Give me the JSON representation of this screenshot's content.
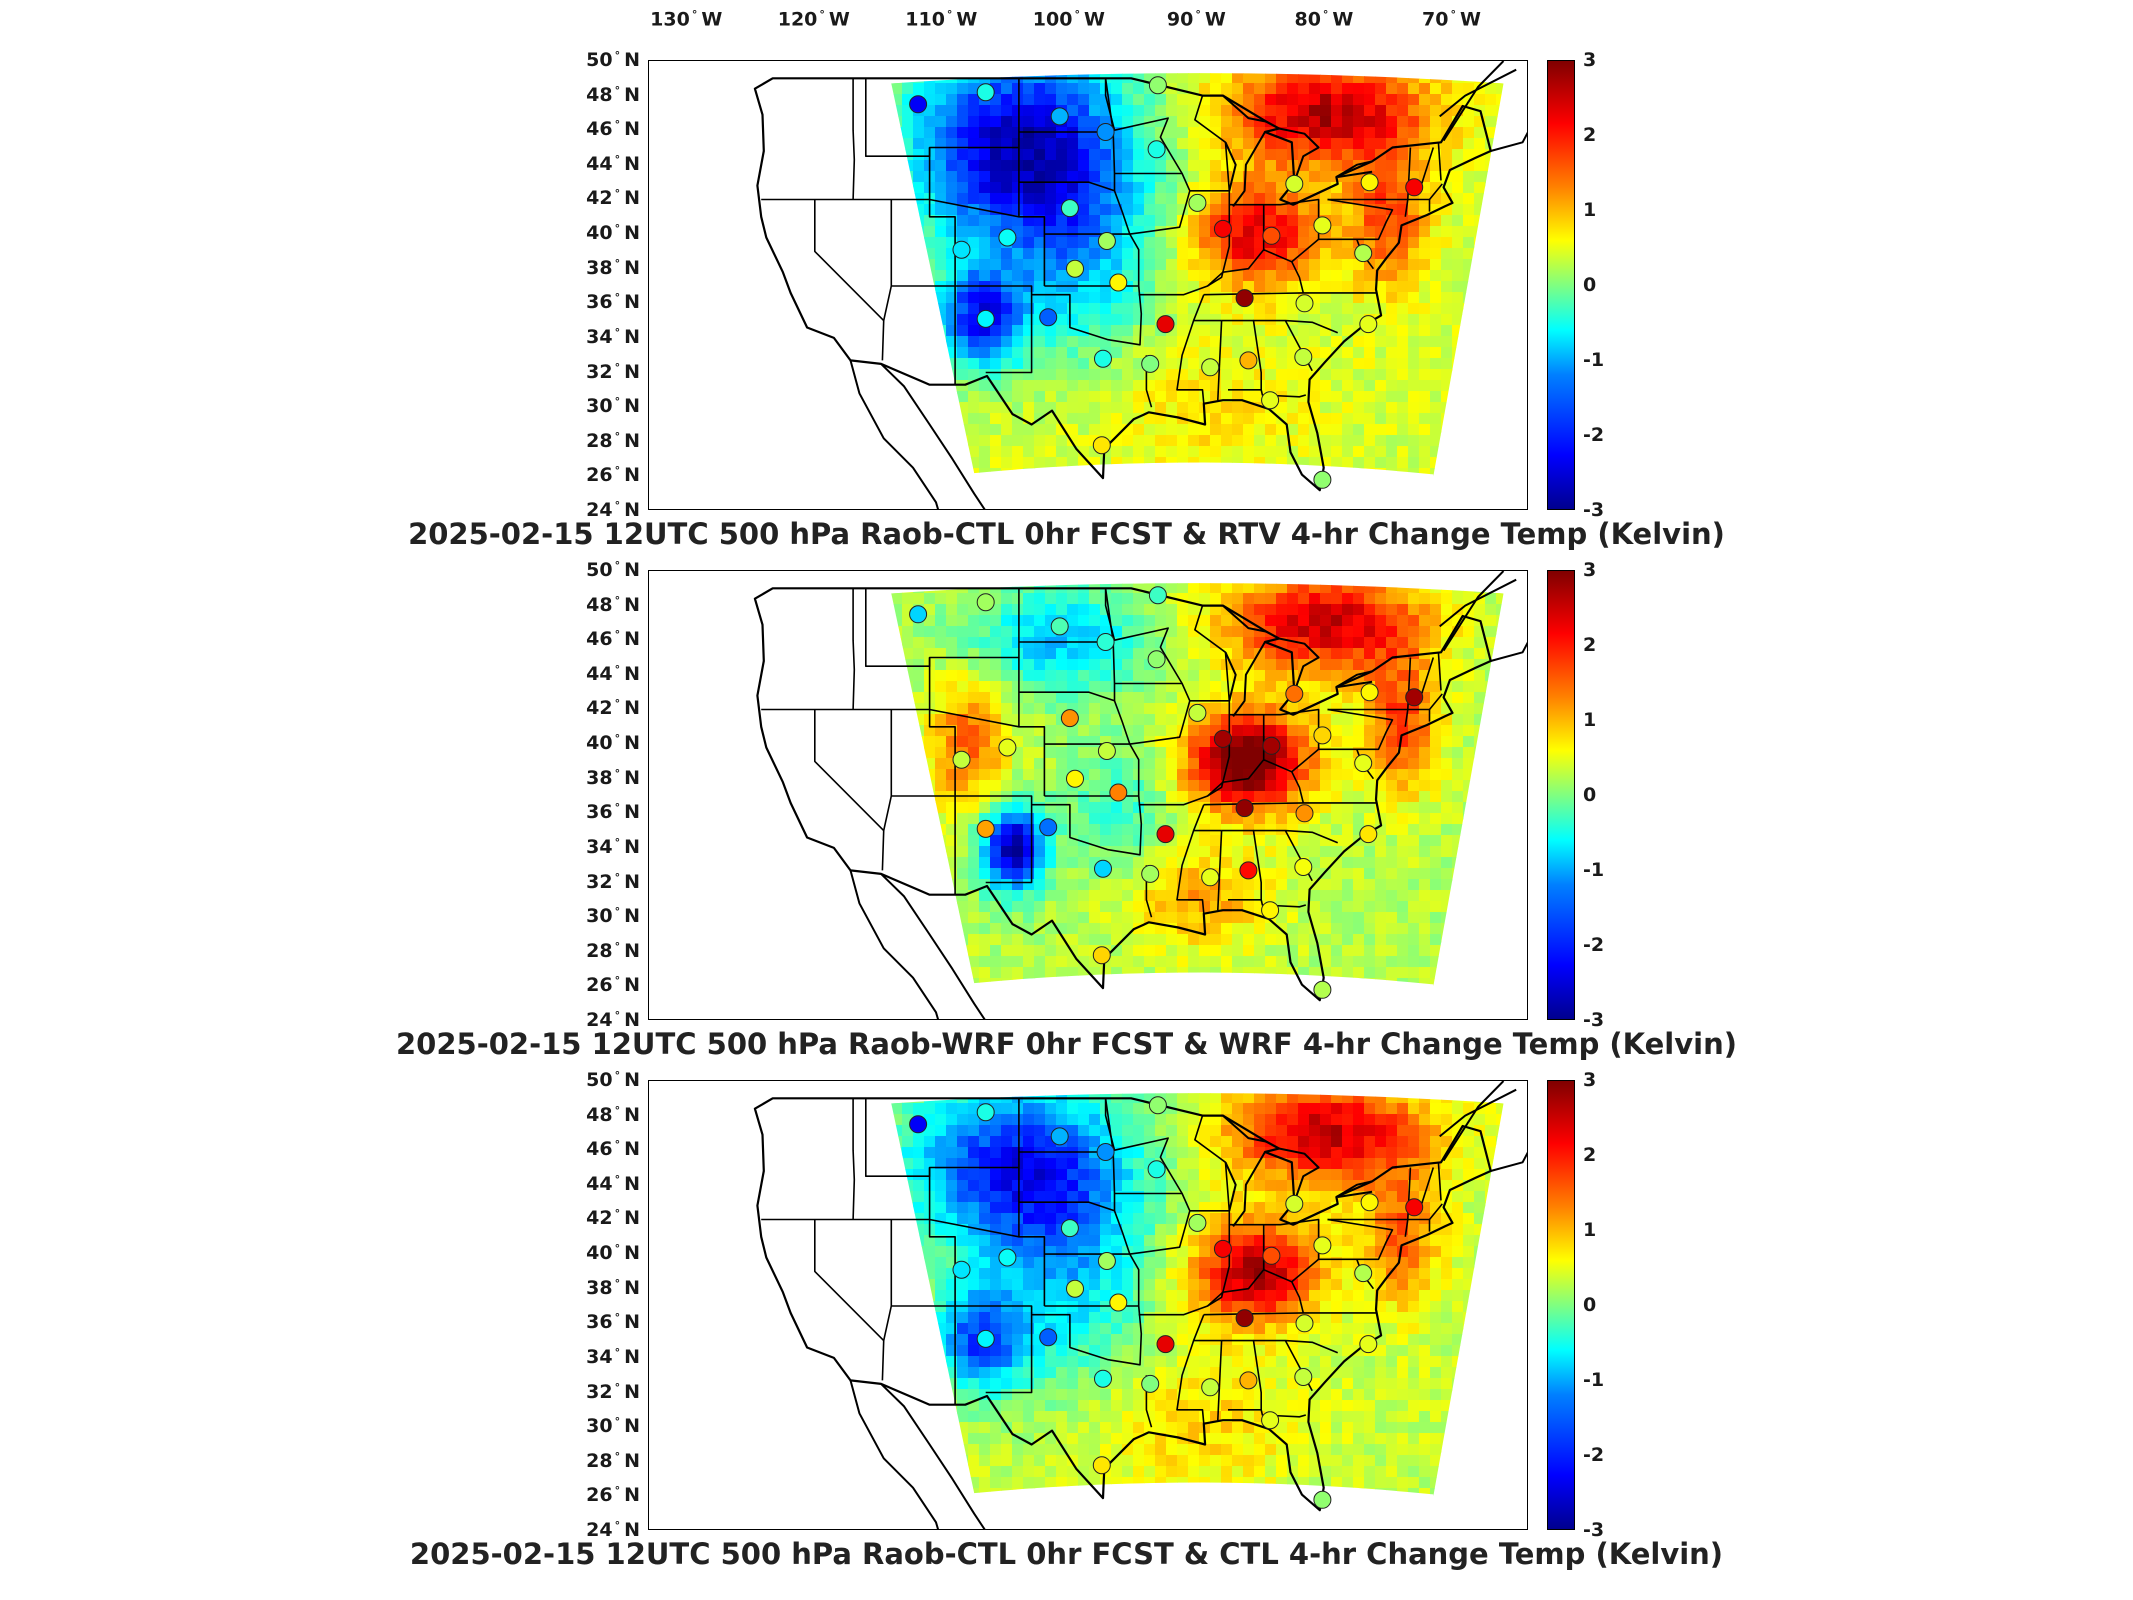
{
  "lon_ticks": [
    {
      "label": "130",
      "hemi": "W"
    },
    {
      "label": "120",
      "hemi": "W"
    },
    {
      "label": "110",
      "hemi": "W"
    },
    {
      "label": "100",
      "hemi": "W"
    },
    {
      "label": "90",
      "hemi": "W"
    },
    {
      "label": "80",
      "hemi": "W"
    },
    {
      "label": "70",
      "hemi": "W"
    }
  ],
  "lat_ticks": [
    {
      "label": "50",
      "hemi": "N"
    },
    {
      "label": "48",
      "hemi": "N"
    },
    {
      "label": "46",
      "hemi": "N"
    },
    {
      "label": "44",
      "hemi": "N"
    },
    {
      "label": "42",
      "hemi": "N"
    },
    {
      "label": "40",
      "hemi": "N"
    },
    {
      "label": "38",
      "hemi": "N"
    },
    {
      "label": "36",
      "hemi": "N"
    },
    {
      "label": "34",
      "hemi": "N"
    },
    {
      "label": "32",
      "hemi": "N"
    },
    {
      "label": "30",
      "hemi": "N"
    },
    {
      "label": "28",
      "hemi": "N"
    },
    {
      "label": "26",
      "hemi": "N"
    },
    {
      "label": "24",
      "hemi": "N"
    }
  ],
  "colorbar": {
    "min": -3,
    "max": 3,
    "ticks": [
      "3",
      "2",
      "1",
      "0",
      "-1",
      "-2",
      "-3"
    ],
    "colors": [
      "#00008f",
      "#0000ff",
      "#0080ff",
      "#00ffff",
      "#80ff80",
      "#ffff00",
      "#ff8000",
      "#ff0000",
      "#800000"
    ]
  },
  "panels": [
    {
      "title": "2025-02-15 12UTC 500 hPa Raob-CTL 0hr FCST & RTV 4-hr Change Temp (Kelvin)",
      "field": "rtv",
      "stations": [
        {
          "lon": -111.9,
          "lat": 47.5,
          "v": -2.3
        },
        {
          "lon": -106.6,
          "lat": 48.2,
          "v": -0.6
        },
        {
          "lon": -100.8,
          "lat": 46.8,
          "v": -1.2
        },
        {
          "lon": -97.2,
          "lat": 45.9,
          "v": -1.4
        },
        {
          "lon": -93.2,
          "lat": 44.9,
          "v": -0.6
        },
        {
          "lon": -93.1,
          "lat": 48.6,
          "v": 0.1
        },
        {
          "lon": -90.0,
          "lat": 41.8,
          "v": 0.2
        },
        {
          "lon": -88.0,
          "lat": 40.3,
          "v": 2.3
        },
        {
          "lon": -84.2,
          "lat": 39.9,
          "v": 1.8
        },
        {
          "lon": -82.4,
          "lat": 42.9,
          "v": 0.5
        },
        {
          "lon": -80.2,
          "lat": 40.5,
          "v": 0.6
        },
        {
          "lon": -76.5,
          "lat": 43.0,
          "v": 0.8
        },
        {
          "lon": -73.0,
          "lat": 42.7,
          "v": 2.3
        },
        {
          "lon": -100.0,
          "lat": 41.5,
          "v": -0.4
        },
        {
          "lon": -97.1,
          "lat": 39.6,
          "v": 0.2
        },
        {
          "lon": -104.9,
          "lat": 39.8,
          "v": -0.7
        },
        {
          "lon": -99.6,
          "lat": 38.0,
          "v": 0.4
        },
        {
          "lon": -96.2,
          "lat": 37.2,
          "v": 0.8
        },
        {
          "lon": -92.5,
          "lat": 34.8,
          "v": 2.4
        },
        {
          "lon": -86.3,
          "lat": 36.3,
          "v": 2.9
        },
        {
          "lon": -81.6,
          "lat": 36.0,
          "v": 0.5
        },
        {
          "lon": -77.0,
          "lat": 38.9,
          "v": 0.3
        },
        {
          "lon": -76.6,
          "lat": 34.8,
          "v": 0.6
        },
        {
          "lon": -106.6,
          "lat": 35.1,
          "v": -0.8
        },
        {
          "lon": -101.7,
          "lat": 35.2,
          "v": -1.7
        },
        {
          "lon": -97.4,
          "lat": 32.8,
          "v": -0.6
        },
        {
          "lon": -93.7,
          "lat": 32.5,
          "v": 0.0
        },
        {
          "lon": -89.0,
          "lat": 32.3,
          "v": 0.4
        },
        {
          "lon": -86.0,
          "lat": 32.7,
          "v": 1.2
        },
        {
          "lon": -81.7,
          "lat": 32.9,
          "v": 0.4
        },
        {
          "lon": -97.5,
          "lat": 27.8,
          "v": 0.9
        },
        {
          "lon": -80.2,
          "lat": 25.8,
          "v": 0.1
        },
        {
          "lon": -84.3,
          "lat": 30.4,
          "v": 0.6
        },
        {
          "lon": -108.5,
          "lat": 39.1,
          "v": -0.9
        }
      ]
    },
    {
      "title": "2025-02-15 12UTC 500 hPa Raob-WRF 0hr FCST & WRF 4-hr Change Temp (Kelvin)",
      "field": "wrf",
      "stations": [
        {
          "lon": -111.9,
          "lat": 47.5,
          "v": -1.0
        },
        {
          "lon": -106.6,
          "lat": 48.2,
          "v": 0.2
        },
        {
          "lon": -100.8,
          "lat": 46.8,
          "v": -0.3
        },
        {
          "lon": -97.2,
          "lat": 45.9,
          "v": -0.5
        },
        {
          "lon": -93.2,
          "lat": 44.9,
          "v": 0.1
        },
        {
          "lon": -93.1,
          "lat": 48.6,
          "v": -0.4
        },
        {
          "lon": -90.0,
          "lat": 41.8,
          "v": 0.4
        },
        {
          "lon": -88.0,
          "lat": 40.3,
          "v": 2.8
        },
        {
          "lon": -84.2,
          "lat": 39.9,
          "v": 2.8
        },
        {
          "lon": -82.4,
          "lat": 42.9,
          "v": 1.6
        },
        {
          "lon": -80.2,
          "lat": 40.5,
          "v": 1.0
        },
        {
          "lon": -76.5,
          "lat": 43.0,
          "v": 0.8
        },
        {
          "lon": -73.0,
          "lat": 42.7,
          "v": 2.8
        },
        {
          "lon": -100.0,
          "lat": 41.5,
          "v": 1.4
        },
        {
          "lon": -97.1,
          "lat": 39.6,
          "v": 0.4
        },
        {
          "lon": -104.9,
          "lat": 39.8,
          "v": 0.6
        },
        {
          "lon": -99.6,
          "lat": 38.0,
          "v": 0.8
        },
        {
          "lon": -96.2,
          "lat": 37.2,
          "v": 1.5
        },
        {
          "lon": -92.5,
          "lat": 34.8,
          "v": 2.4
        },
        {
          "lon": -86.3,
          "lat": 36.3,
          "v": 2.9
        },
        {
          "lon": -81.6,
          "lat": 36.0,
          "v": 1.4
        },
        {
          "lon": -77.0,
          "lat": 38.9,
          "v": 0.6
        },
        {
          "lon": -76.6,
          "lat": 34.8,
          "v": 0.9
        },
        {
          "lon": -106.6,
          "lat": 35.1,
          "v": 1.3
        },
        {
          "lon": -101.7,
          "lat": 35.2,
          "v": -1.6
        },
        {
          "lon": -97.4,
          "lat": 32.8,
          "v": -1.0
        },
        {
          "lon": -93.7,
          "lat": 32.5,
          "v": 0.2
        },
        {
          "lon": -89.0,
          "lat": 32.3,
          "v": 0.6
        },
        {
          "lon": -86.0,
          "lat": 32.7,
          "v": 2.2
        },
        {
          "lon": -81.7,
          "lat": 32.9,
          "v": 0.7
        },
        {
          "lon": -97.5,
          "lat": 27.8,
          "v": 1.0
        },
        {
          "lon": -80.2,
          "lat": 25.8,
          "v": 0.3
        },
        {
          "lon": -84.3,
          "lat": 30.4,
          "v": 0.8
        },
        {
          "lon": -108.5,
          "lat": 39.1,
          "v": 0.4
        }
      ]
    },
    {
      "title": "2025-02-15 12UTC 500 hPa Raob-CTL 0hr FCST & CTL 4-hr Change Temp (Kelvin)",
      "field": "ctl",
      "stations": [
        {
          "lon": -111.9,
          "lat": 47.5,
          "v": -2.3
        },
        {
          "lon": -106.6,
          "lat": 48.2,
          "v": -0.6
        },
        {
          "lon": -100.8,
          "lat": 46.8,
          "v": -1.2
        },
        {
          "lon": -97.2,
          "lat": 45.9,
          "v": -1.4
        },
        {
          "lon": -93.2,
          "lat": 44.9,
          "v": -0.6
        },
        {
          "lon": -93.1,
          "lat": 48.6,
          "v": 0.1
        },
        {
          "lon": -90.0,
          "lat": 41.8,
          "v": 0.2
        },
        {
          "lon": -88.0,
          "lat": 40.3,
          "v": 2.3
        },
        {
          "lon": -84.2,
          "lat": 39.9,
          "v": 1.8
        },
        {
          "lon": -82.4,
          "lat": 42.9,
          "v": 0.5
        },
        {
          "lon": -80.2,
          "lat": 40.5,
          "v": 0.6
        },
        {
          "lon": -76.5,
          "lat": 43.0,
          "v": 0.8
        },
        {
          "lon": -73.0,
          "lat": 42.7,
          "v": 2.3
        },
        {
          "lon": -100.0,
          "lat": 41.5,
          "v": -0.4
        },
        {
          "lon": -97.1,
          "lat": 39.6,
          "v": 0.2
        },
        {
          "lon": -104.9,
          "lat": 39.8,
          "v": -0.7
        },
        {
          "lon": -99.6,
          "lat": 38.0,
          "v": 0.4
        },
        {
          "lon": -96.2,
          "lat": 37.2,
          "v": 0.8
        },
        {
          "lon": -92.5,
          "lat": 34.8,
          "v": 2.4
        },
        {
          "lon": -86.3,
          "lat": 36.3,
          "v": 2.9
        },
        {
          "lon": -81.6,
          "lat": 36.0,
          "v": 0.5
        },
        {
          "lon": -77.0,
          "lat": 38.9,
          "v": 0.3
        },
        {
          "lon": -76.6,
          "lat": 34.8,
          "v": 0.6
        },
        {
          "lon": -106.6,
          "lat": 35.1,
          "v": -0.8
        },
        {
          "lon": -101.7,
          "lat": 35.2,
          "v": -1.7
        },
        {
          "lon": -97.4,
          "lat": 32.8,
          "v": -0.6
        },
        {
          "lon": -93.7,
          "lat": 32.5,
          "v": 0.0
        },
        {
          "lon": -89.0,
          "lat": 32.3,
          "v": 0.4
        },
        {
          "lon": -86.0,
          "lat": 32.7,
          "v": 1.2
        },
        {
          "lon": -81.7,
          "lat": 32.9,
          "v": 0.4
        },
        {
          "lon": -97.5,
          "lat": 27.8,
          "v": 0.9
        },
        {
          "lon": -80.2,
          "lat": 25.8,
          "v": 0.1
        },
        {
          "lon": -84.3,
          "lat": 30.4,
          "v": 0.6
        },
        {
          "lon": -108.5,
          "lat": 39.1,
          "v": -0.9
        }
      ]
    }
  ]
}
